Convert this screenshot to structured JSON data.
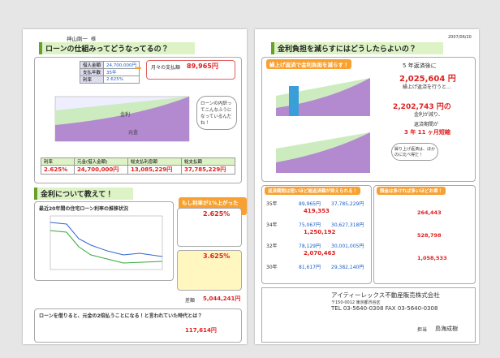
{
  "left": {
    "customer": "神山剛一",
    "honorific": "様",
    "title": "ローンの仕組みってどうなってるの？",
    "loan_table": [
      [
        "借入金額",
        "24,700,000円"
      ],
      [
        "支払年数",
        "35年"
      ],
      [
        "利率",
        "2.625%"
      ]
    ],
    "monthly_label": "月々の支払額",
    "monthly": "89,965円",
    "chart_interest": "金利",
    "chart_principal": "元金",
    "bubble": "ローンの内訳ってこんなふうになっているんだね！",
    "summary_headers": [
      "利率",
      "元金(借入金額)",
      "総支払利息額",
      "総支払額"
    ],
    "summary_values": [
      "2.625%",
      "24,700,000円",
      "13,085,229円",
      "37,785,229円"
    ],
    "section2_title": "金利について教えて！",
    "history_title": "最近20年間の住宅ローン利率の推移状況",
    "if_title": "もし利率が1%上がったら？",
    "rate_before": "2.625%",
    "rate_after": "3.625%",
    "diff_label": "差額",
    "diff": "5,044,241円",
    "section3_title": "ローンを借りると、元金の2倍払うことになる！と言われていた時代とは？",
    "monthly3": "117,614円"
  },
  "right": {
    "date": "2007/06/20",
    "title": "金利負担を減らすにはどうしたらよいの？",
    "prepay_title": "繰上げ返済で金利負担を減らす！",
    "prepay_line1": "5 年返済後に",
    "prepay_amount": "2,025,604 円",
    "prepay_line2": "繰上げ返済を行うと…",
    "saved": "2,202,743 円の",
    "saved_note": "金利が減り、",
    "shorten_label": "返済期間が",
    "shorten": "3 年 11 ヶ月短縮",
    "bubble": "繰り上げ返済は、ほかのに比べ得だ！",
    "term_title": "返済期間は短いほど総返済額が抑えられる！",
    "term_rows": [
      [
        "35年",
        "89,965円",
        "37,785,229円"
      ],
      [
        "34年",
        "75,067円",
        "30,627,318円"
      ],
      [
        "32年",
        "78,129円",
        "30,001,005円"
      ],
      [
        "30年",
        "81,617円",
        "29,382,140円"
      ]
    ],
    "term_savings": [
      "419,353",
      "1,250,192",
      "2,070,463"
    ],
    "down_title": "頭金は多ければ多いほどお得！",
    "down_savings": [
      "264,443",
      "528,798",
      "1,058,533"
    ],
    "company": "アイティーレックス不動産販売株式会社",
    "address": "〒150-0012 東京都渋谷区",
    "tel": "TEL 03-5640-0308  FAX 03-5640-0308",
    "staff_label": "担当",
    "staff": "島海成樹"
  }
}
